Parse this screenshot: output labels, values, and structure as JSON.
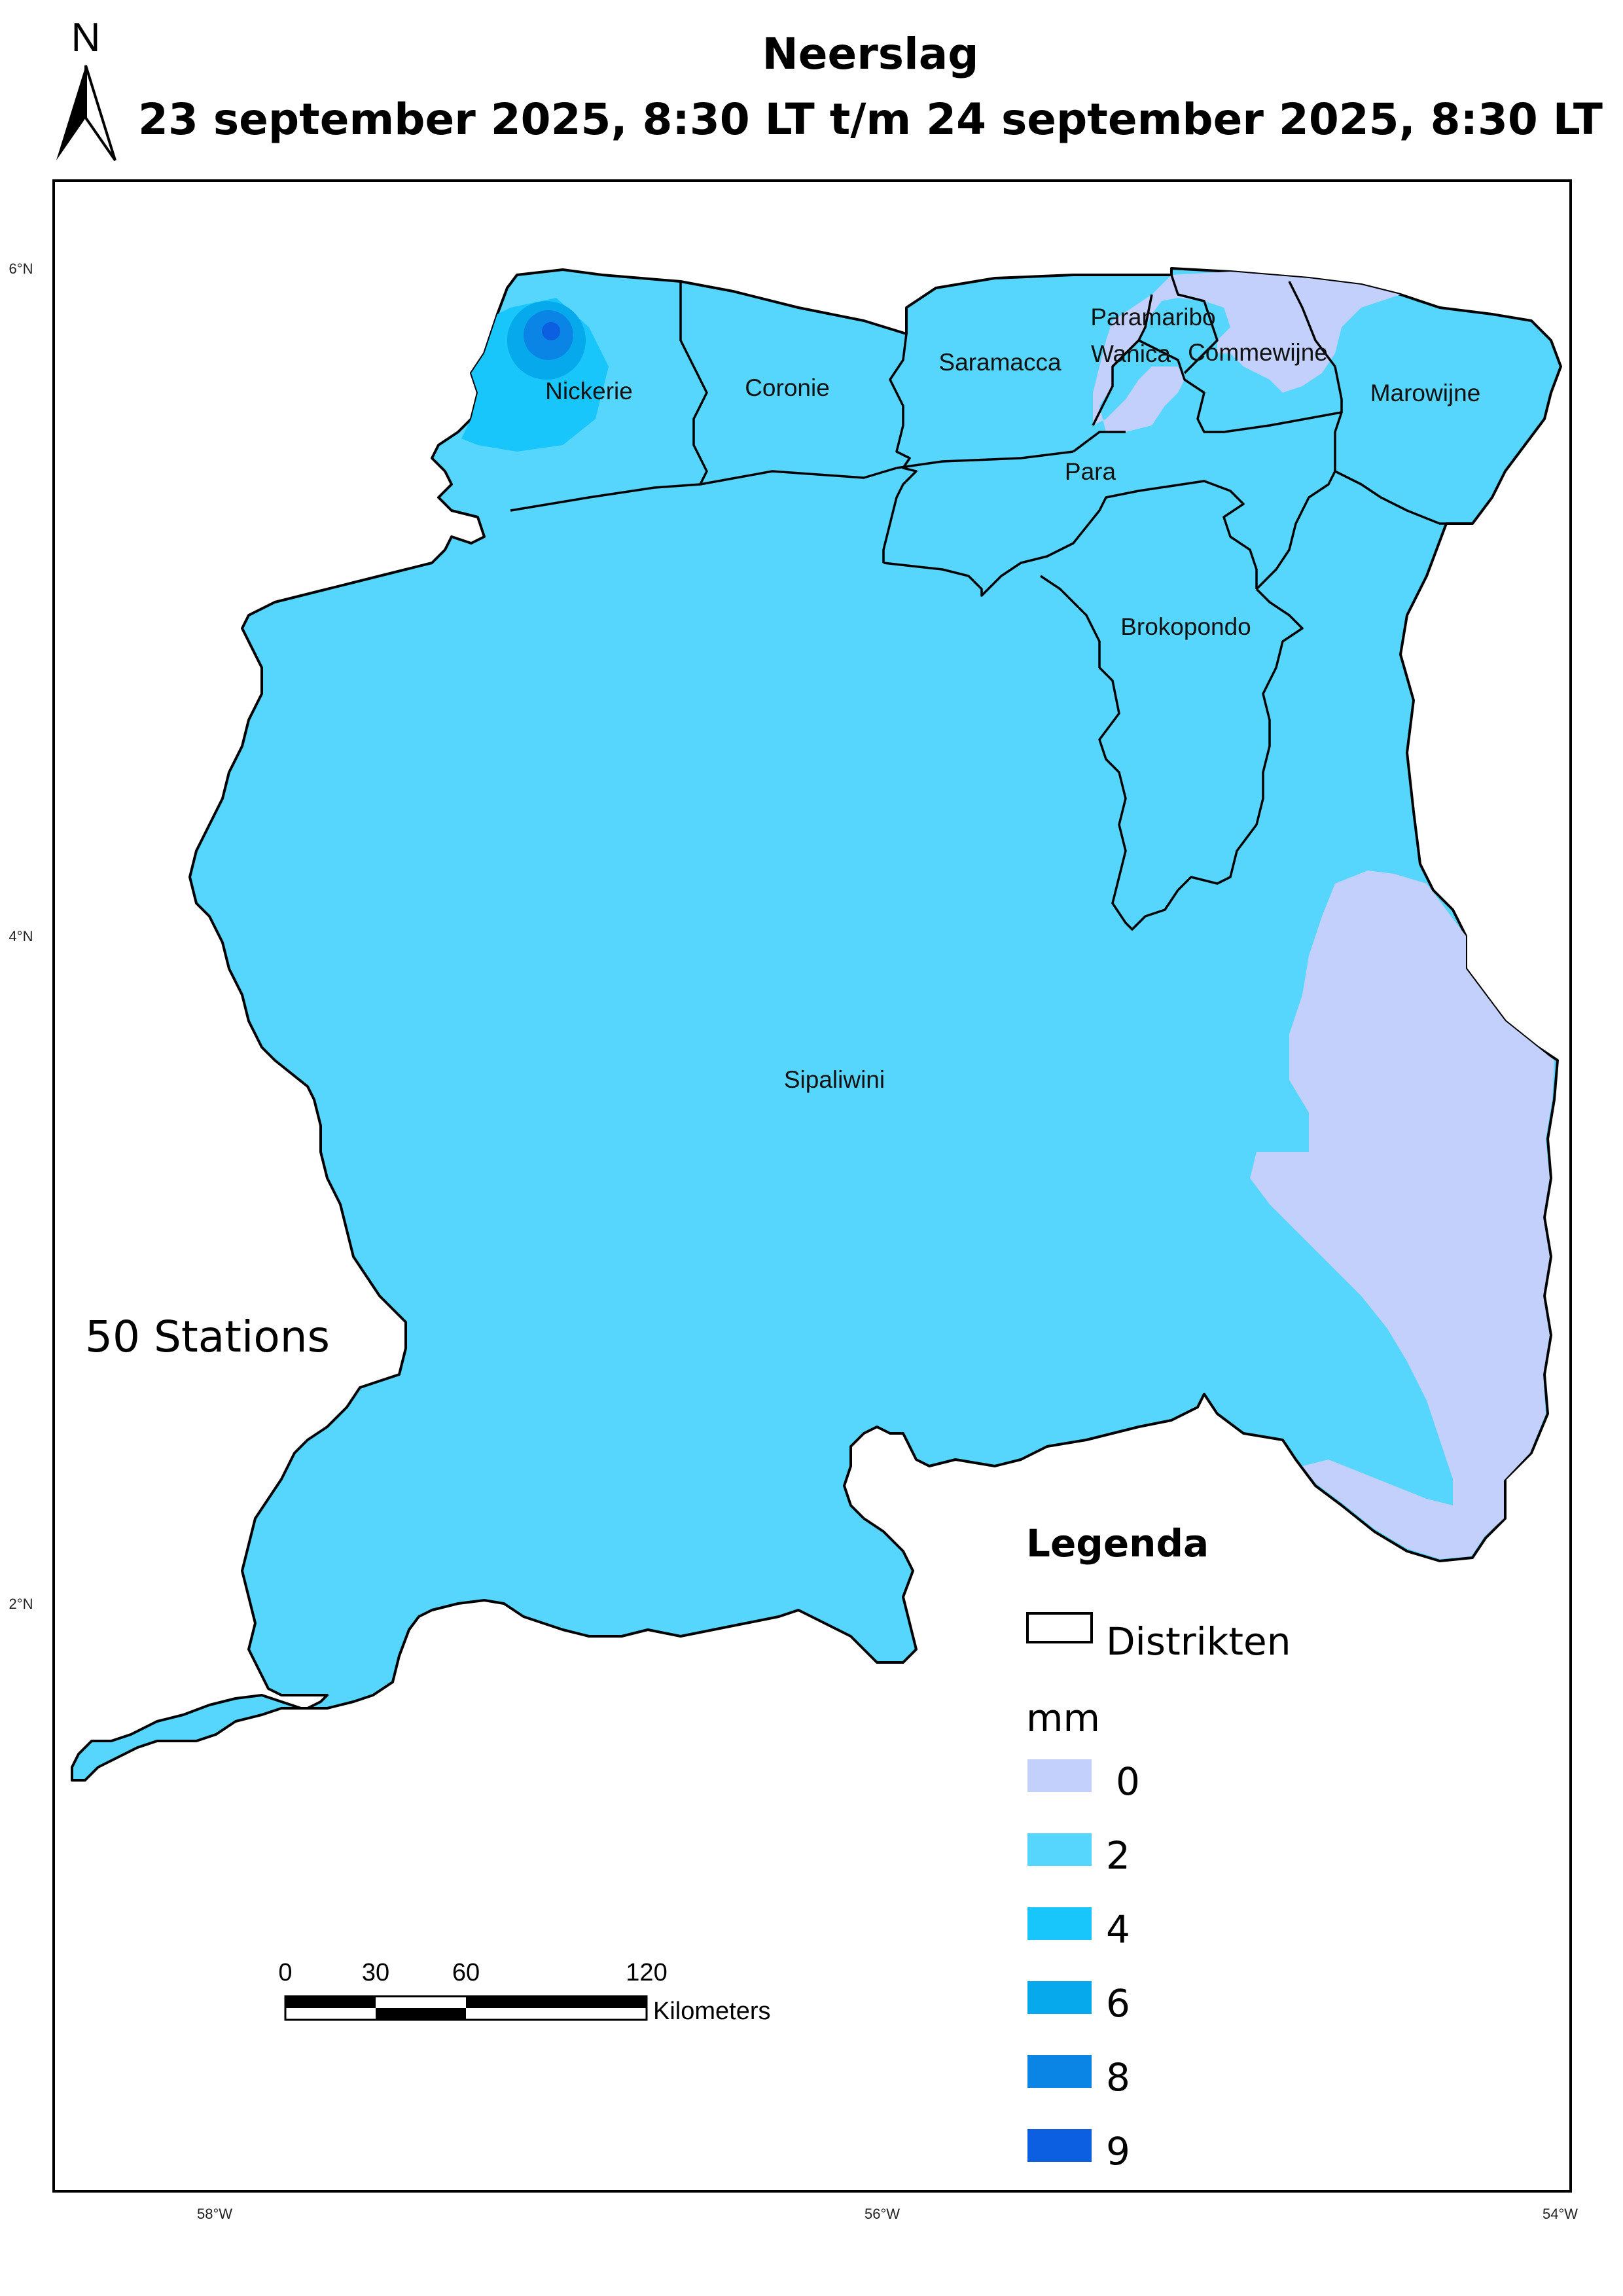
{
  "title": {
    "line1": "Neerslag",
    "line2": "23 september 2025, 8:30 LT t/m 24 september 2025, 8:30 LT"
  },
  "north_arrow": {
    "label": "N"
  },
  "stations_text": "50 Stations",
  "districts": [
    {
      "name": "Nickerie"
    },
    {
      "name": "Coronie"
    },
    {
      "name": "Saramacca"
    },
    {
      "name": "Paramaribo"
    },
    {
      "name": "Wanica"
    },
    {
      "name": "Commewijne"
    },
    {
      "name": "Marowijne"
    },
    {
      "name": "Para"
    },
    {
      "name": "Brokopondo"
    },
    {
      "name": "Sipaliwini"
    }
  ],
  "lat_labels": [
    "6°N",
    "4°N",
    "2°N"
  ],
  "lon_labels": [
    "58°W",
    "56°W",
    "54°W"
  ],
  "legend": {
    "title": "Legenda",
    "boundary_label": "Distrikten",
    "unit": "mm",
    "classes": [
      {
        "label": "0",
        "color": "#c2d0fb"
      },
      {
        "label": "2",
        "color": "#56d5fd"
      },
      {
        "label": "4",
        "color": "#19c6fb"
      },
      {
        "label": "6",
        "color": "#05a9ec"
      },
      {
        "label": "8",
        "color": "#0a85e6"
      },
      {
        "label": "9",
        "color": "#0b5fe0"
      }
    ]
  },
  "scale_bar": {
    "ticks": [
      "0",
      "30",
      "60",
      "120"
    ],
    "unit": "Kilometers"
  }
}
